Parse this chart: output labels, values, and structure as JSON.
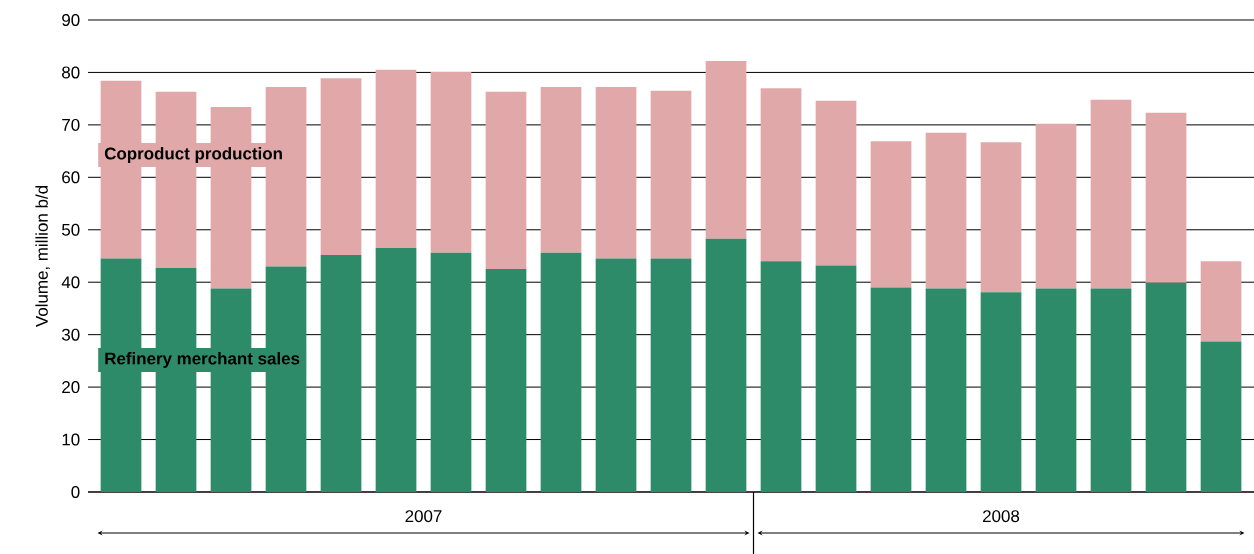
{
  "chart_data": {
    "type": "bar",
    "stacked": true,
    "ylabel": "Volume, million b/d",
    "categories": [
      null,
      null,
      null,
      null,
      null,
      null,
      null,
      null,
      null,
      null,
      null,
      null,
      null,
      null,
      null,
      null,
      null,
      null,
      null,
      null,
      null
    ],
    "series": [
      {
        "name": "Refinery merchant sales",
        "color": "#2e8b6a",
        "values": [
          44.5,
          42.7,
          38.8,
          43.0,
          45.2,
          46.5,
          45.6,
          42.5,
          45.6,
          44.5,
          44.5,
          48.3,
          44.0,
          43.2,
          39.0,
          38.8,
          38.1,
          38.8,
          38.8,
          39.9,
          28.7
        ]
      },
      {
        "name": "Coproduct production",
        "color": "#e0a8a8",
        "values": [
          33.9,
          33.6,
          34.6,
          34.2,
          33.7,
          34.0,
          34.5,
          33.8,
          31.6,
          32.7,
          32.0,
          33.9,
          33.0,
          31.4,
          27.9,
          29.7,
          28.6,
          31.4,
          36.0,
          32.4,
          15.3
        ]
      }
    ],
    "ylim": [
      0,
      90
    ],
    "yticks": [
      0,
      10,
      20,
      30,
      40,
      50,
      60,
      70,
      80,
      90
    ],
    "grid": "y",
    "legend": "left",
    "annotations": [
      "2007",
      "2008"
    ]
  }
}
